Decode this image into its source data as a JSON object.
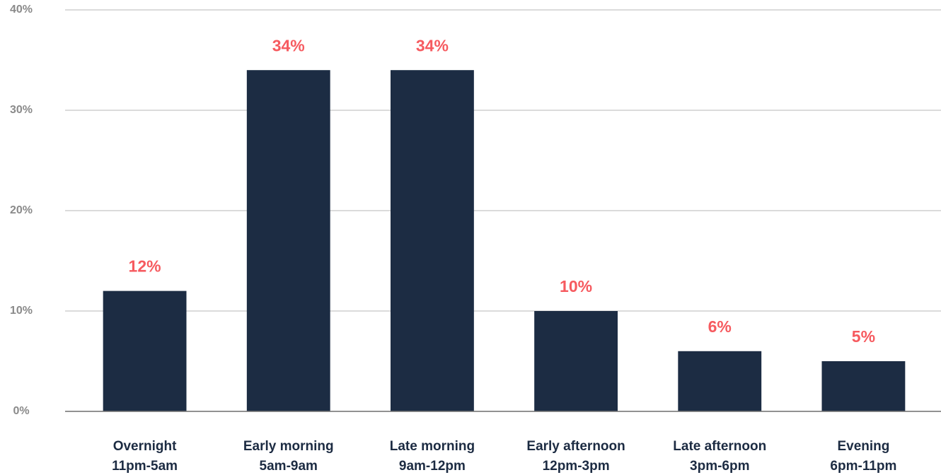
{
  "chart_data": {
    "type": "bar",
    "categories": [
      [
        "Overnight",
        "11pm-5am"
      ],
      [
        "Early morning",
        "5am-9am"
      ],
      [
        "Late morning",
        "9am-12pm"
      ],
      [
        "Early afternoon",
        "12pm-3pm"
      ],
      [
        "Late afternoon",
        "3pm-6pm"
      ],
      [
        "Evening",
        "6pm-11pm"
      ]
    ],
    "values": [
      12,
      34,
      34,
      10,
      6,
      5
    ],
    "value_labels": [
      "12%",
      "34%",
      "34%",
      "10%",
      "6%",
      "5%"
    ],
    "color": "#1c2c43",
    "ylim": [
      0,
      40
    ],
    "yticks": [
      {
        "value": 0,
        "label": "0%"
      },
      {
        "value": 10,
        "label": "10%"
      },
      {
        "value": 20,
        "label": "20%"
      },
      {
        "value": 30,
        "label": "30%"
      },
      {
        "value": 40,
        "label": "40%"
      }
    ],
    "grid": true
  }
}
